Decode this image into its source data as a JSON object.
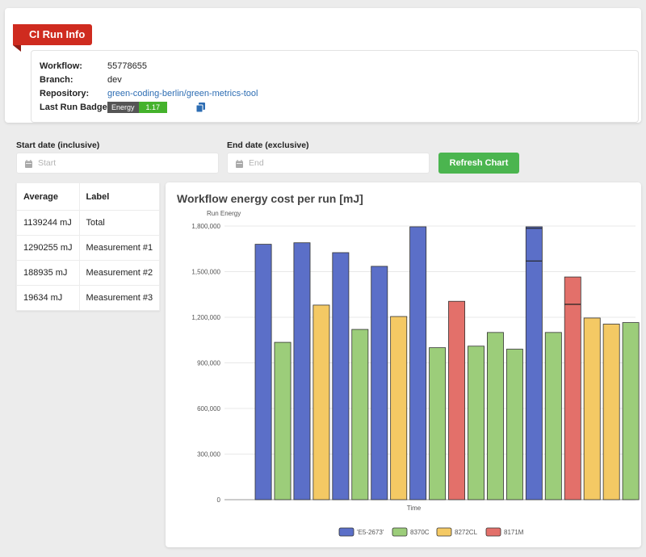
{
  "ci_run_info": {
    "title": "CI Run Info",
    "workflow_label": "Workflow:",
    "workflow_value": "55778655",
    "branch_label": "Branch:",
    "branch_value": "dev",
    "repository_label": "Repository:",
    "repository_value": "green-coding-berlin/green-metrics-tool",
    "badge_label": "Last Run Badge:",
    "badge_key": "Energy Used",
    "badge_value": "1.17 kJ"
  },
  "filters": {
    "start_label": "Start date (inclusive)",
    "start_placeholder": "Start",
    "end_label": "End date (exclusive)",
    "end_placeholder": "End",
    "refresh_label": "Refresh Chart"
  },
  "averages_table": {
    "headers": [
      "Average",
      "Label"
    ],
    "rows": [
      [
        "1139244 mJ",
        "Total"
      ],
      [
        "1290255 mJ",
        "Measurement #1"
      ],
      [
        "188935 mJ",
        "Measurement #2"
      ],
      [
        "19634 mJ",
        "Measurement #3"
      ]
    ]
  },
  "chart_title": "Workflow energy cost per run [mJ]",
  "colors": {
    "E5-2673": "#5b6fc8",
    "8370C": "#9ccd7a",
    "8272CL": "#f4c964",
    "8171M": "#e3706a",
    "ribbon": "#cf2b1f",
    "button": "#4bb54f"
  },
  "chart_data": {
    "type": "bar",
    "title": "Workflow energy cost per run [mJ]",
    "xlabel": "Time",
    "ylabel": "Run Energy",
    "ylim": [
      0,
      1800000
    ],
    "yticks": [
      "0",
      "300,000",
      "600,000",
      "900,000",
      "1,200,000",
      "1,500,000",
      "1,800,000"
    ],
    "legend_position": "bottom",
    "series_names": [
      "'E5-2673'",
      "8370C",
      "8272CL",
      "8171M"
    ],
    "bars": [
      {
        "series": "'E5-2673'",
        "value": 1680000
      },
      {
        "series": "8370C",
        "value": 1035000
      },
      {
        "series": "'E5-2673'",
        "value": 1690000
      },
      {
        "series": "8272CL",
        "value": 1280000
      },
      {
        "series": "'E5-2673'",
        "value": 1625000
      },
      {
        "series": "8370C",
        "value": 1120000
      },
      {
        "series": "'E5-2673'",
        "value": 1535000
      },
      {
        "series": "8272CL",
        "value": 1205000
      },
      {
        "series": "'E5-2673'",
        "value": 1795000
      },
      {
        "series": "8370C",
        "value": 1000000
      },
      {
        "series": "8171M",
        "value": 1305000
      },
      {
        "series": "8370C",
        "value": 1010000
      },
      {
        "series": "8370C",
        "value": 1100000
      },
      {
        "series": "8370C",
        "value": 990000
      },
      {
        "series": "'E5-2673'",
        "value": 1795000,
        "segment_lines": [
          1785000,
          1570000
        ]
      },
      {
        "series": "8370C",
        "value": 1100000
      },
      {
        "series": "8171M",
        "value": 1465000,
        "segment_lines": [
          1285000
        ]
      },
      {
        "series": "8272CL",
        "value": 1195000
      },
      {
        "series": "8272CL",
        "value": 1155000
      },
      {
        "series": "8370C",
        "value": 1165000
      }
    ]
  }
}
